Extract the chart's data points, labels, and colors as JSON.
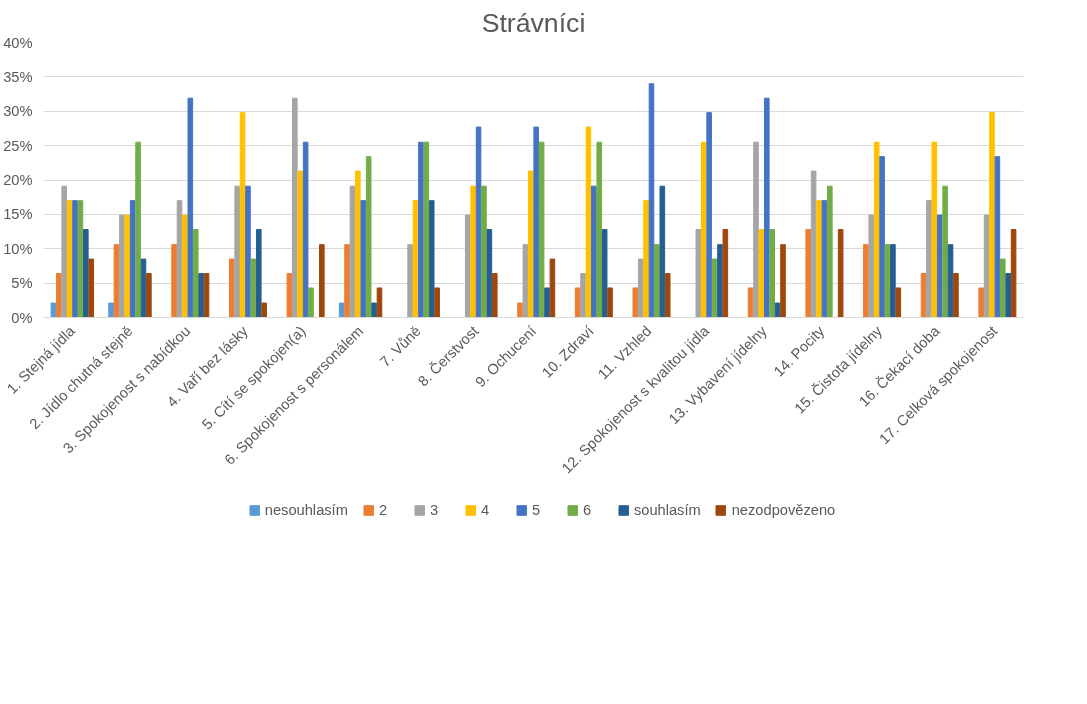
{
  "chart_data": {
    "type": "bar",
    "title": "Strávníci",
    "categories": [
      "1. Stejná jídla",
      "2. Jídlo chutná stejně",
      "3. Spokojenost s nabídkou",
      "4. Vaří bez lásky",
      "5. Cítí se spokojen(a)",
      "6. Spokojenost s personálem",
      "7. Vůně",
      "8. Čerstvost",
      "9. Ochucení",
      "10. Zdraví",
      "11. Vzhled",
      "12. Spokojenost s kvalitou jídla",
      "13. Vybavení jídelny",
      "14. Pocity",
      "15. Čistota jídelny",
      "16. Čekací doba",
      "17. Celková spokojenost"
    ],
    "series": [
      {
        "name": "nesouhlasím",
        "color": "#5b9bd5",
        "values": [
          2.1,
          2.1,
          0,
          0,
          0,
          2.1,
          0,
          0,
          0,
          0,
          0,
          0,
          0,
          0,
          0,
          0,
          0
        ]
      },
      {
        "name": "2",
        "color": "#ed7d31",
        "values": [
          6.4,
          10.6,
          10.6,
          8.5,
          6.4,
          10.6,
          0,
          0,
          2.1,
          4.3,
          4.3,
          0,
          4.3,
          12.8,
          10.6,
          6.4,
          4.3
        ]
      },
      {
        "name": "3",
        "color": "#a5a5a5",
        "values": [
          19.1,
          14.9,
          17.0,
          19.1,
          31.9,
          19.1,
          10.6,
          14.9,
          10.6,
          6.4,
          8.5,
          12.8,
          25.5,
          21.3,
          14.9,
          17.0,
          14.9
        ]
      },
      {
        "name": "4",
        "color": "#ffc000",
        "values": [
          17.0,
          14.9,
          14.9,
          29.8,
          21.3,
          21.3,
          17.0,
          19.1,
          21.3,
          27.7,
          17.0,
          25.5,
          12.8,
          17.0,
          25.5,
          25.5,
          29.8
        ]
      },
      {
        "name": "5",
        "color": "#4472c4",
        "values": [
          17.0,
          17.0,
          31.9,
          19.1,
          25.5,
          17.0,
          25.5,
          27.7,
          27.7,
          19.1,
          34.0,
          29.8,
          31.9,
          17.0,
          23.4,
          14.9,
          23.4
        ]
      },
      {
        "name": "6",
        "color": "#70ad47",
        "values": [
          17.0,
          25.5,
          12.8,
          8.5,
          4.3,
          23.4,
          25.5,
          19.1,
          25.5,
          25.5,
          10.6,
          8.5,
          12.8,
          19.1,
          10.6,
          19.1,
          8.5
        ]
      },
      {
        "name": "souhlasím",
        "color": "#255e91",
        "values": [
          12.8,
          8.5,
          6.4,
          12.8,
          0,
          2.1,
          17.0,
          12.8,
          4.3,
          12.8,
          19.1,
          10.6,
          2.1,
          0,
          10.6,
          10.6,
          6.4
        ]
      },
      {
        "name": "nezodpovězeno",
        "color": "#9e480e",
        "values": [
          8.5,
          6.4,
          6.4,
          2.1,
          10.6,
          4.3,
          4.3,
          6.4,
          8.5,
          4.3,
          6.4,
          12.8,
          10.6,
          12.8,
          4.3,
          6.4,
          12.8
        ]
      }
    ],
    "ylim": [
      0,
      40
    ],
    "yticks": [
      {
        "value": 0,
        "label": "0%"
      },
      {
        "value": 5,
        "label": "5%"
      },
      {
        "value": 10,
        "label": "10%"
      },
      {
        "value": 15,
        "label": "15%"
      },
      {
        "value": 20,
        "label": "20%"
      },
      {
        "value": 25,
        "label": "25%"
      },
      {
        "value": 30,
        "label": "30%"
      },
      {
        "value": 35,
        "label": "35%"
      },
      {
        "value": 40,
        "label": "40%"
      }
    ],
    "grid": "y",
    "legend": "bottom"
  }
}
